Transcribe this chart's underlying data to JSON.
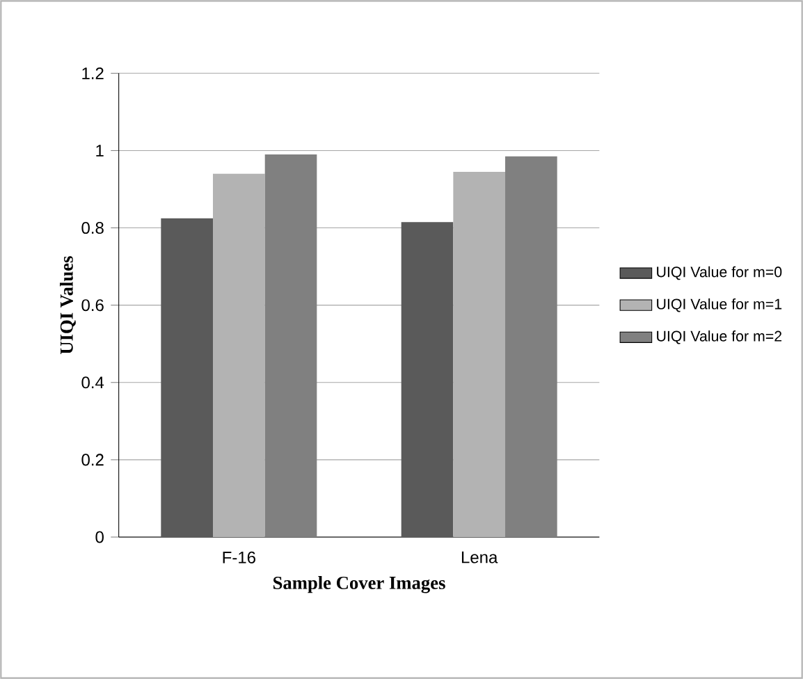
{
  "chart_data": {
    "type": "bar",
    "xlabel": "Sample Cover Images",
    "ylabel": "UIQI  Values",
    "categories": [
      "F-16",
      "Lena"
    ],
    "series": [
      {
        "name": "UIQI Value for m=0",
        "color": "#5a5a5a",
        "values": [
          0.825,
          0.815
        ]
      },
      {
        "name": "UIQI Value for m=1",
        "color": "#b3b3b3",
        "values": [
          0.94,
          0.945
        ]
      },
      {
        "name": "UIQI Value for m=2",
        "color": "#808080",
        "values": [
          0.99,
          0.985
        ]
      }
    ],
    "ylim": [
      0,
      1.2
    ],
    "yticks": [
      0,
      0.2,
      0.4,
      0.6,
      0.8,
      1,
      1.2
    ],
    "grid": "y",
    "legend": "right"
  }
}
